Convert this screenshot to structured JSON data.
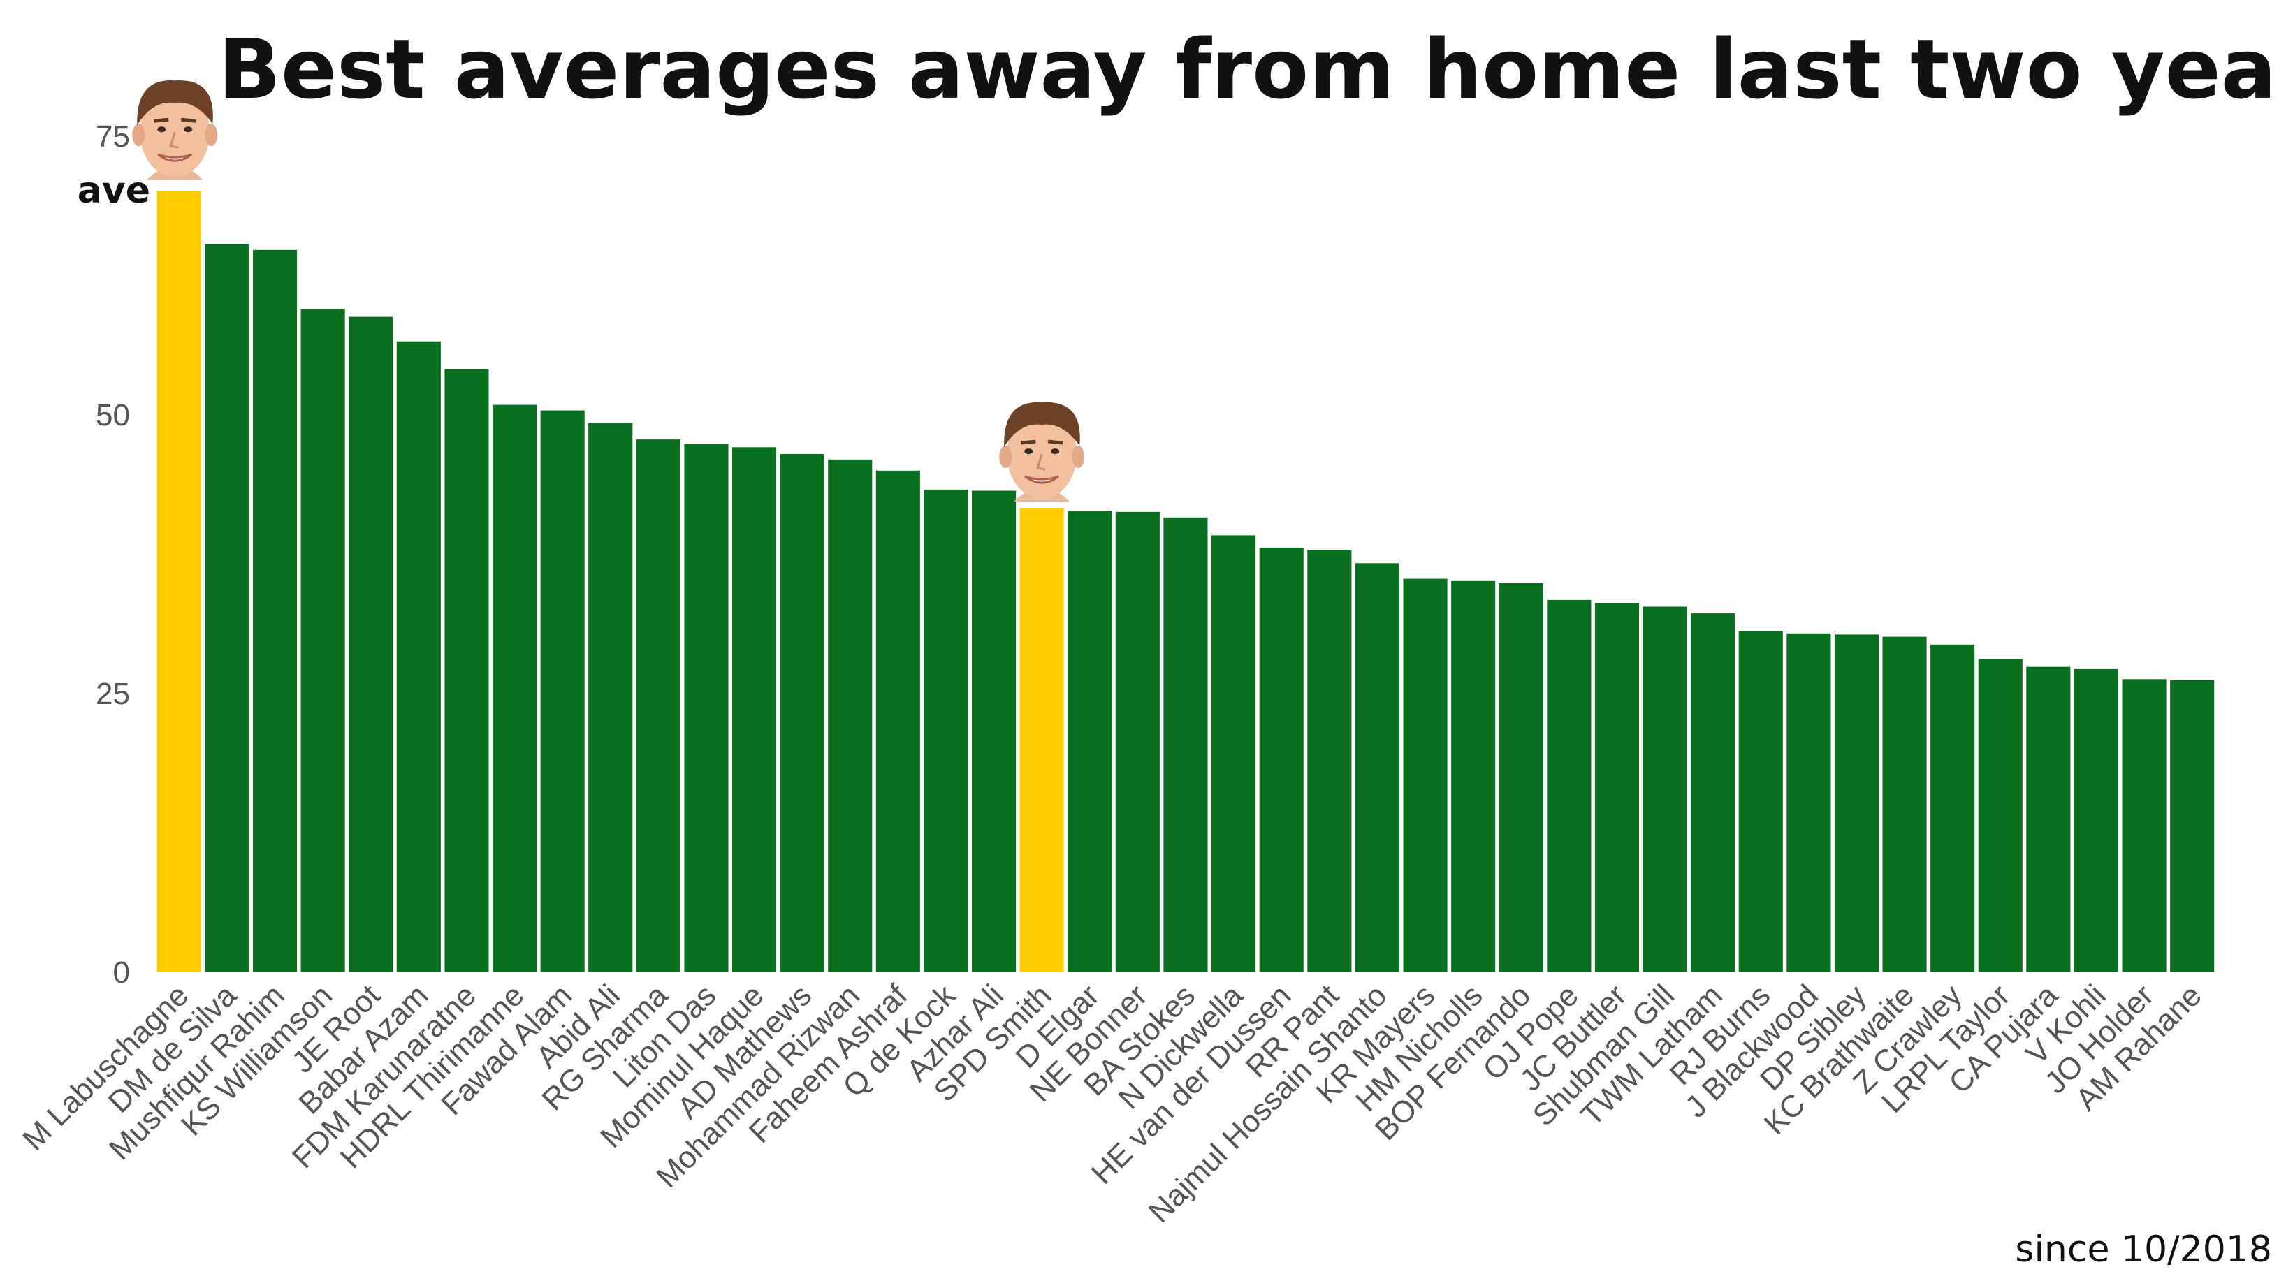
{
  "chart_data": {
    "type": "bar",
    "title": "Best averages away from home last two years",
    "ylabel": "ave",
    "xlabel": "",
    "ylim": [
      0,
      75
    ],
    "yticks": [
      0,
      25,
      50,
      75
    ],
    "grid": false,
    "legend": "none",
    "annotation": "since 10/2018",
    "colors": {
      "default": "#0a7020",
      "highlight": "#ffcc00"
    },
    "highlighted": [
      "M Labuschagne",
      "SPD Smith"
    ],
    "categories": [
      "M Labuschagne",
      "DM de Silva",
      "Mushfiqur Rahim",
      "KS Williamson",
      "JE Root",
      "Babar Azam",
      "FDM Karunaratne",
      "HDRL Thirimanne",
      "Fawad Alam",
      "Abid Ali",
      "RG Sharma",
      "Liton Das",
      "Mominul Haque",
      "AD Mathews",
      "Mohammad Rizwan",
      "Faheem Ashraf",
      "Q de Kock",
      "Azhar Ali",
      "SPD Smith",
      "D Elgar",
      "NE Bonner",
      "BA Stokes",
      "N Dickwella",
      "HE van der Dussen",
      "RR Pant",
      "Najmul Hossain Shanto",
      "KR Mayers",
      "HM Nicholls",
      "BOP Fernando",
      "OJ Pope",
      "JC Buttler",
      "Shubman Gill",
      "TWM Latham",
      "RJ Burns",
      "J Blackwood",
      "DP Sibley",
      "KC Brathwaite",
      "Z Crawley",
      "LRPL Taylor",
      "CA Pujara",
      "V Kohli",
      "JO Holder",
      "AM Rahane"
    ],
    "values": [
      70.1,
      65.3,
      64.8,
      59.5,
      58.8,
      56.6,
      54.1,
      50.9,
      50.4,
      49.3,
      47.8,
      47.4,
      47.1,
      46.5,
      46.0,
      45.0,
      43.3,
      43.2,
      41.6,
      41.4,
      41.3,
      40.8,
      39.2,
      38.1,
      37.9,
      36.7,
      35.3,
      35.1,
      34.9,
      33.4,
      33.1,
      32.8,
      32.2,
      30.6,
      30.4,
      30.3,
      30.1,
      29.4,
      28.1,
      27.4,
      27.2,
      26.3,
      26.2
    ]
  },
  "images": {
    "face_1": "player-face-labuschagne",
    "face_2": "player-face-smith"
  }
}
